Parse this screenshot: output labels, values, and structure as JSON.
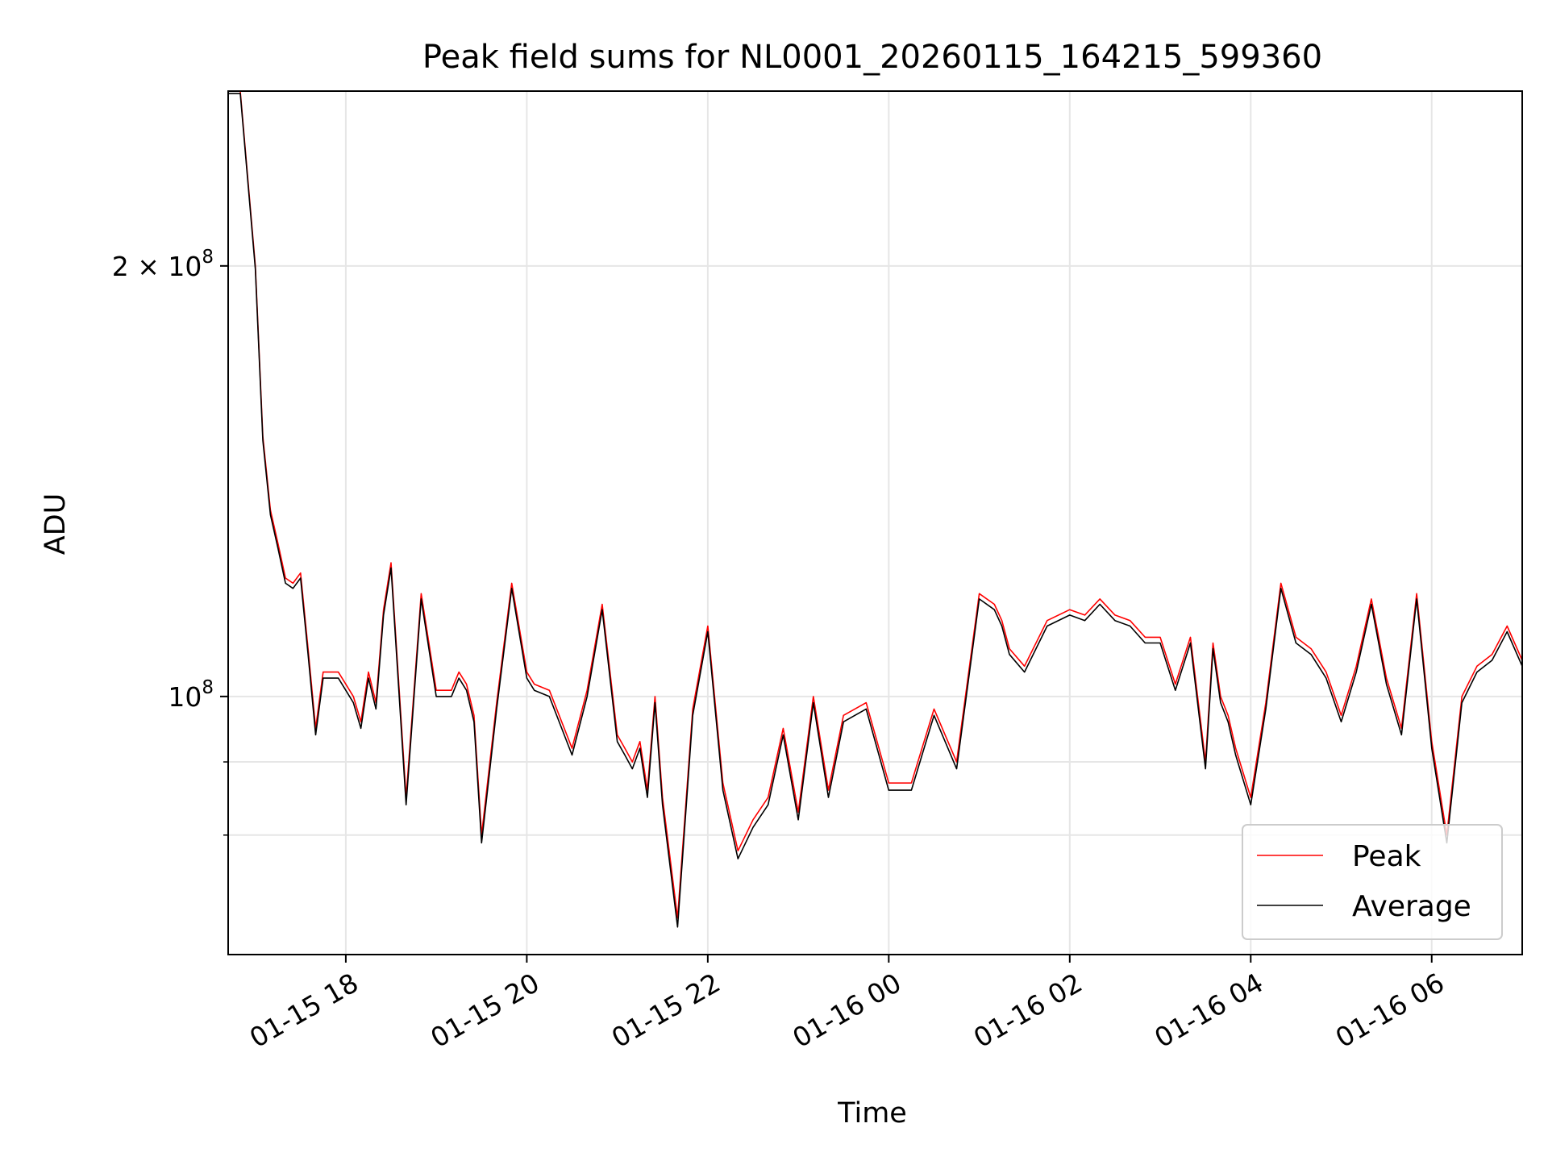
{
  "chart_data": {
    "type": "line",
    "title": "Peak field sums for NL0001_20260115_164215_599360",
    "xlabel": "Time",
    "ylabel": "ADU",
    "y_scale": "log",
    "ylim": [
      66000000,
      265000000
    ],
    "xlim": [
      "2026-01-15 16:42",
      "2026-01-16 07:00"
    ],
    "grid": true,
    "legend": "lower right",
    "x_tick_labels": [
      "01-15 18",
      "01-15 20",
      "01-15 22",
      "01-16 00",
      "01-16 02",
      "01-16 04",
      "01-16 06"
    ],
    "x_ticks": [
      "2026-01-15 18:00",
      "2026-01-15 20:00",
      "2026-01-15 22:00",
      "2026-01-16 00:00",
      "2026-01-16 02:00",
      "2026-01-16 04:00",
      "2026-01-16 06:00"
    ],
    "y_ticks_major": [
      {
        "value": 100000000,
        "mantissa": "",
        "base": "10",
        "exp": "8"
      },
      {
        "value": 200000000,
        "mantissa": "2 × ",
        "base": "10",
        "exp": "8"
      }
    ],
    "y_ticks_minor": [
      80000000,
      90000000
    ],
    "series": [
      {
        "name": "Peak",
        "color": "#ff0000"
      },
      {
        "name": "Average",
        "color": "#000000"
      }
    ],
    "x": [
      "2026-01-15 16:42",
      "2026-01-15 16:50",
      "2026-01-15 17:00",
      "2026-01-15 17:05",
      "2026-01-15 17:10",
      "2026-01-15 17:15",
      "2026-01-15 17:20",
      "2026-01-15 17:25",
      "2026-01-15 17:30",
      "2026-01-15 17:35",
      "2026-01-15 17:40",
      "2026-01-15 17:45",
      "2026-01-15 17:50",
      "2026-01-15 17:55",
      "2026-01-15 18:00",
      "2026-01-15 18:05",
      "2026-01-15 18:10",
      "2026-01-15 18:15",
      "2026-01-15 18:20",
      "2026-01-15 18:25",
      "2026-01-15 18:30",
      "2026-01-15 18:40",
      "2026-01-15 18:50",
      "2026-01-15 19:00",
      "2026-01-15 19:10",
      "2026-01-15 19:15",
      "2026-01-15 19:20",
      "2026-01-15 19:25",
      "2026-01-15 19:30",
      "2026-01-15 19:40",
      "2026-01-15 19:50",
      "2026-01-15 20:00",
      "2026-01-15 20:05",
      "2026-01-15 20:15",
      "2026-01-15 20:30",
      "2026-01-15 20:40",
      "2026-01-15 20:50",
      "2026-01-15 21:00",
      "2026-01-15 21:05",
      "2026-01-15 21:10",
      "2026-01-15 21:15",
      "2026-01-15 21:20",
      "2026-01-15 21:25",
      "2026-01-15 21:30",
      "2026-01-15 21:40",
      "2026-01-15 21:50",
      "2026-01-15 22:00",
      "2026-01-15 22:10",
      "2026-01-15 22:20",
      "2026-01-15 22:30",
      "2026-01-15 22:40",
      "2026-01-15 22:50",
      "2026-01-15 23:00",
      "2026-01-15 23:10",
      "2026-01-15 23:20",
      "2026-01-15 23:30",
      "2026-01-15 23:45",
      "2026-01-16 00:00",
      "2026-01-16 00:15",
      "2026-01-16 00:30",
      "2026-01-16 00:45",
      "2026-01-16 01:00",
      "2026-01-16 01:10",
      "2026-01-16 01:15",
      "2026-01-16 01:20",
      "2026-01-16 01:30",
      "2026-01-16 01:45",
      "2026-01-16 02:00",
      "2026-01-16 02:10",
      "2026-01-16 02:20",
      "2026-01-16 02:30",
      "2026-01-16 02:40",
      "2026-01-16 02:50",
      "2026-01-16 03:00",
      "2026-01-16 03:10",
      "2026-01-16 03:20",
      "2026-01-16 03:30",
      "2026-01-16 03:35",
      "2026-01-16 03:40",
      "2026-01-16 03:45",
      "2026-01-16 03:50",
      "2026-01-16 04:00",
      "2026-01-16 04:10",
      "2026-01-16 04:20",
      "2026-01-16 04:30",
      "2026-01-16 04:40",
      "2026-01-16 04:50",
      "2026-01-16 05:00",
      "2026-01-16 05:10",
      "2026-01-16 05:20",
      "2026-01-16 05:30",
      "2026-01-16 05:40",
      "2026-01-16 05:50",
      "2026-01-16 06:00",
      "2026-01-16 06:10",
      "2026-01-16 06:20",
      "2026-01-16 06:30",
      "2026-01-16 06:40",
      "2026-01-16 06:50",
      "2026-01-16 07:00"
    ],
    "peak": [
      265000000,
      265000000,
      200000000,
      152000000,
      135000000,
      128000000,
      121000000,
      120000000,
      122000000,
      108000000,
      95000000,
      104000000,
      104000000,
      104000000,
      102000000,
      100000000,
      96000000,
      104000000,
      99000000,
      115000000,
      124000000,
      85000000,
      118000000,
      101000000,
      101000000,
      104000000,
      102000000,
      97000000,
      80000000,
      99000000,
      120000000,
      104000000,
      102000000,
      101000000,
      92000000,
      101000000,
      116000000,
      94000000,
      92000000,
      90000000,
      93000000,
      86000000,
      100000000,
      85000000,
      70000000,
      98000000,
      112000000,
      87000000,
      78000000,
      82000000,
      85000000,
      95000000,
      83000000,
      100000000,
      86000000,
      97000000,
      99000000,
      87000000,
      87000000,
      98000000,
      90000000,
      118000000,
      116000000,
      113000000,
      108000000,
      105000000,
      113000000,
      115000000,
      114000000,
      117000000,
      114000000,
      113000000,
      110000000,
      110000000,
      102000000,
      110000000,
      90000000,
      109000000,
      100000000,
      97000000,
      92000000,
      85000000,
      99000000,
      120000000,
      110000000,
      108000000,
      104000000,
      97000000,
      105000000,
      117000000,
      103000000,
      95000000,
      118000000,
      93000000,
      80000000,
      100000000,
      105000000,
      107000000,
      112000000,
      106000000
    ],
    "average": [
      264000000,
      264000000,
      199000000,
      151000000,
      134000000,
      127000000,
      120000000,
      119000000,
      121000000,
      107000000,
      94000000,
      103000000,
      103000000,
      103000000,
      101000000,
      99000000,
      95000000,
      103000000,
      98000000,
      114000000,
      123000000,
      84000000,
      117000000,
      100000000,
      100000000,
      103000000,
      101000000,
      96000000,
      79000000,
      98000000,
      119000000,
      103000000,
      101000000,
      100000000,
      91000000,
      100000000,
      115000000,
      93000000,
      91000000,
      89000000,
      92000000,
      85000000,
      99000000,
      84000000,
      69000000,
      97000000,
      111000000,
      86000000,
      77000000,
      81000000,
      84000000,
      94000000,
      82000000,
      99000000,
      85000000,
      96000000,
      98000000,
      86000000,
      86000000,
      97000000,
      89000000,
      117000000,
      115000000,
      112000000,
      107000000,
      104000000,
      112000000,
      114000000,
      113000000,
      116000000,
      113000000,
      112000000,
      109000000,
      109000000,
      101000000,
      109000000,
      89000000,
      108000000,
      99000000,
      96000000,
      91000000,
      84000000,
      98000000,
      119000000,
      109000000,
      107000000,
      103000000,
      96000000,
      104000000,
      116000000,
      102000000,
      94000000,
      117000000,
      92000000,
      79000000,
      99000000,
      104000000,
      106000000,
      111000000,
      105000000
    ]
  }
}
